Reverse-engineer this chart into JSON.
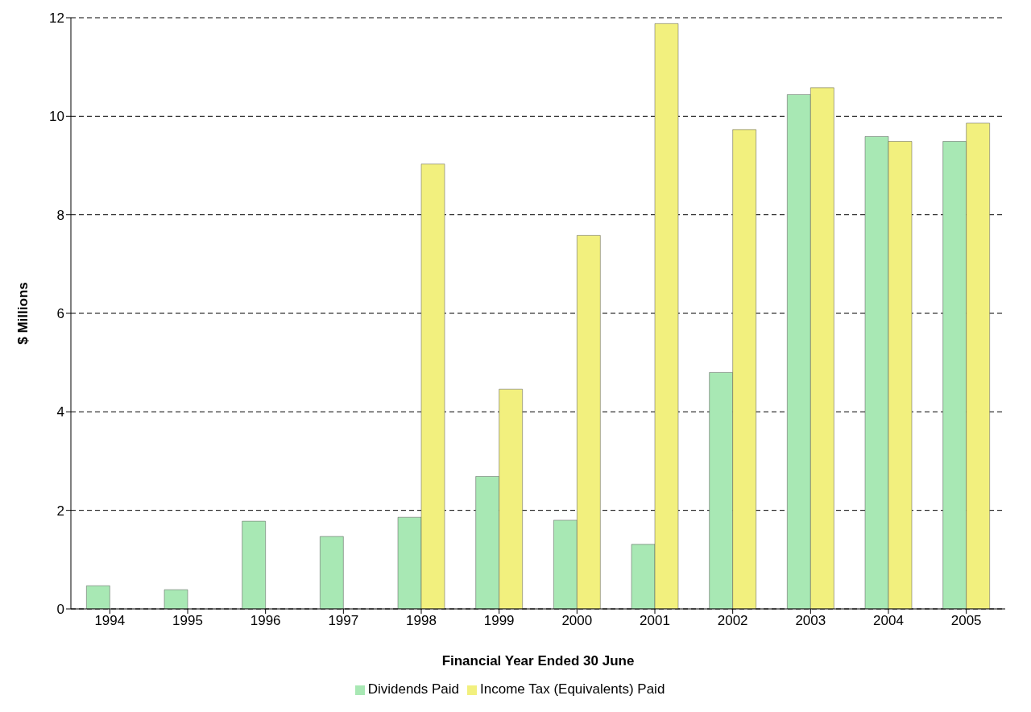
{
  "chart_data": {
    "type": "bar",
    "xlabel": "Financial Year Ended 30 June",
    "ylabel": "$ Millions",
    "categories": [
      "1994",
      "1995",
      "1996",
      "1997",
      "1998",
      "1999",
      "2000",
      "2001",
      "2002",
      "2003",
      "2004",
      "2005"
    ],
    "series": [
      {
        "name": "Dividends Paid",
        "color": "#a8e8b4",
        "values": [
          0.47,
          0.39,
          1.78,
          1.47,
          1.86,
          2.69,
          1.8,
          1.31,
          4.8,
          10.44,
          9.59,
          9.49
        ]
      },
      {
        "name": "Income Tax (Equivalents) Paid",
        "color": "#f2f07e",
        "values": [
          null,
          null,
          null,
          null,
          9.03,
          4.46,
          7.58,
          11.88,
          9.73,
          10.58,
          9.49,
          9.86
        ]
      }
    ],
    "ylim": [
      0,
      12
    ],
    "yticks": [
      0,
      2,
      4,
      6,
      8,
      10,
      12
    ],
    "grid": "y",
    "legend": "bottom"
  }
}
